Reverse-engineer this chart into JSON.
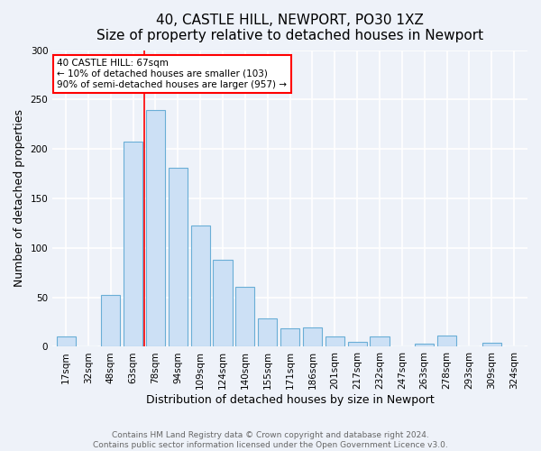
{
  "title": "40, CASTLE HILL, NEWPORT, PO30 1XZ",
  "subtitle": "Size of property relative to detached houses in Newport",
  "xlabel": "Distribution of detached houses by size in Newport",
  "ylabel": "Number of detached properties",
  "bar_labels": [
    "17sqm",
    "32sqm",
    "48sqm",
    "63sqm",
    "78sqm",
    "94sqm",
    "109sqm",
    "124sqm",
    "140sqm",
    "155sqm",
    "171sqm",
    "186sqm",
    "201sqm",
    "217sqm",
    "232sqm",
    "247sqm",
    "263sqm",
    "278sqm",
    "293sqm",
    "309sqm",
    "324sqm"
  ],
  "bar_heights": [
    10,
    0,
    52,
    207,
    239,
    181,
    123,
    88,
    61,
    29,
    19,
    20,
    10,
    5,
    10,
    0,
    3,
    11,
    0,
    4,
    0
  ],
  "bar_color": "#cce0f5",
  "bar_edge_color": "#6aaed6",
  "ylim": [
    0,
    300
  ],
  "yticks": [
    0,
    50,
    100,
    150,
    200,
    250,
    300
  ],
  "red_line_x": 3.5,
  "annotation_box_text": "40 CASTLE HILL: 67sqm\n← 10% of detached houses are smaller (103)\n90% of semi-detached houses are larger (957) →",
  "footer_line1": "Contains HM Land Registry data © Crown copyright and database right 2024.",
  "footer_line2": "Contains public sector information licensed under the Open Government Licence v3.0.",
  "background_color": "#eef2f9",
  "grid_color": "#ffffff",
  "title_fontsize": 11,
  "subtitle_fontsize": 10,
  "axis_label_fontsize": 9,
  "tick_fontsize": 7.5,
  "footer_fontsize": 6.5
}
